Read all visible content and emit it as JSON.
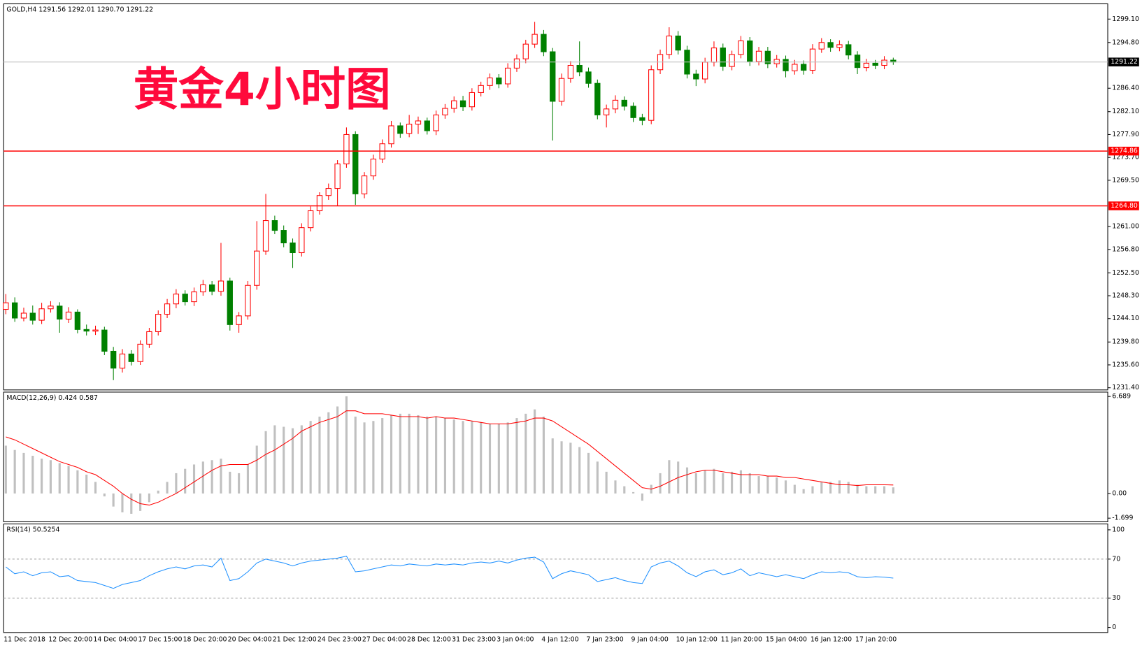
{
  "chart_data": [
    {
      "type": "candlestick",
      "title": "GOLD,H4  1291.56 1292.01 1290.70 1291.22",
      "annotation": "黄金4小时图",
      "up_color": "#ff0000",
      "down_color": "#008000",
      "categories": [
        "11 Dec 2018",
        null,
        null,
        null,
        null,
        "12 Dec 20:00",
        null,
        null,
        null,
        null,
        "14 Dec 04:00",
        null,
        null,
        null,
        null,
        "17 Dec 15:00",
        null,
        null,
        null,
        null,
        "18 Dec 20:00",
        null,
        null,
        null,
        null,
        "20 Dec 04:00",
        null,
        null,
        null,
        null,
        "21 Dec 12:00",
        null,
        null,
        null,
        null,
        "24 Dec 23:00",
        null,
        null,
        null,
        null,
        "27 Dec 04:00",
        null,
        null,
        null,
        null,
        "28 Dec 12:00",
        null,
        null,
        null,
        null,
        "31 Dec 23:00",
        null,
        null,
        null,
        null,
        "3 Jan 04:00",
        null,
        null,
        null,
        null,
        "4 Jan 12:00",
        null,
        null,
        null,
        null,
        "7 Jan 23:00",
        null,
        null,
        null,
        null,
        "9 Jan 04:00",
        null,
        null,
        null,
        null,
        "10 Jan 12:00",
        null,
        null,
        null,
        null,
        "11 Jan 20:00",
        null,
        null,
        null,
        null,
        "15 Jan 04:00",
        null,
        null,
        null,
        null,
        "16 Jan 12:00",
        null,
        null,
        null,
        null,
        "17 Jan 20:00",
        null,
        null,
        null,
        null
      ],
      "open": [
        1245.8,
        1247.0,
        1244.2,
        1245.1,
        1243.8,
        1245.9,
        1246.4,
        1244.0,
        1245.3,
        1242.1,
        1241.8,
        1242.0,
        1238.1,
        1235.0,
        1237.6,
        1236.2,
        1239.4,
        1241.7,
        1244.9,
        1246.8,
        1248.6,
        1247.2,
        1249.0,
        1250.3,
        1249.1,
        1251.0,
        1243.0,
        1244.6,
        1250.2,
        1256.5,
        1262.1,
        1260.3,
        1258.0,
        1256.2,
        1260.8,
        1263.9,
        1266.7,
        1268.0,
        1272.5,
        1277.9,
        1267.0,
        1270.3,
        1273.4,
        1276.2,
        1279.5,
        1278.1,
        1279.8,
        1280.4,
        1278.6,
        1281.5,
        1282.7,
        1284.1,
        1283.0,
        1285.6,
        1286.9,
        1288.3,
        1287.2,
        1290.1,
        1291.8,
        1294.5,
        1296.3,
        1293.1,
        1284.0,
        1288.2,
        1290.6,
        1289.4,
        1287.3,
        1281.5,
        1282.6,
        1284.2,
        1283.1,
        1281.0,
        1280.5,
        1289.8,
        1292.6,
        1296.0,
        1293.4,
        1289.0,
        1288.1,
        1291.2,
        1293.8,
        1290.4,
        1292.6,
        1295.1,
        1291.3,
        1293.2,
        1290.9,
        1291.7,
        1289.6,
        1290.8,
        1289.7,
        1293.6,
        1294.8,
        1293.9,
        1294.4,
        1292.5,
        1290.2,
        1291.0,
        1290.6,
        1291.56
      ],
      "high": [
        1248.6,
        1248.0,
        1246.1,
        1246.5,
        1247.0,
        1247.3,
        1247.1,
        1246.2,
        1245.8,
        1243.0,
        1242.8,
        1242.6,
        1238.9,
        1238.5,
        1238.3,
        1240.1,
        1242.4,
        1245.6,
        1247.7,
        1249.5,
        1249.3,
        1249.8,
        1251.2,
        1251.0,
        1258.0,
        1251.6,
        1245.3,
        1251.0,
        1262.0,
        1267.0,
        1263.0,
        1261.2,
        1258.8,
        1261.6,
        1264.7,
        1267.3,
        1268.9,
        1273.2,
        1279.2,
        1278.5,
        1271.0,
        1274.2,
        1277.0,
        1280.4,
        1280.1,
        1281.5,
        1281.2,
        1281.0,
        1282.3,
        1283.5,
        1284.9,
        1285.0,
        1286.4,
        1287.6,
        1289.1,
        1289.0,
        1291.0,
        1292.6,
        1295.3,
        1298.6,
        1297.1,
        1293.8,
        1289.1,
        1291.4,
        1295.0,
        1290.2,
        1288.0,
        1283.4,
        1285.1,
        1284.9,
        1283.8,
        1281.7,
        1290.6,
        1293.5,
        1297.6,
        1296.9,
        1294.2,
        1289.8,
        1292.0,
        1295.0,
        1294.6,
        1293.3,
        1296.0,
        1295.8,
        1294.0,
        1294.0,
        1292.5,
        1292.4,
        1291.6,
        1291.5,
        1294.5,
        1295.6,
        1295.4,
        1295.2,
        1295.1,
        1293.2,
        1291.8,
        1291.6,
        1292.3,
        1292.01
      ],
      "low": [
        1244.9,
        1243.5,
        1243.6,
        1243.0,
        1243.1,
        1245.2,
        1241.5,
        1243.3,
        1241.4,
        1241.0,
        1241.1,
        1237.4,
        1232.8,
        1234.2,
        1235.5,
        1235.6,
        1238.7,
        1241.0,
        1244.2,
        1246.0,
        1246.5,
        1246.4,
        1248.3,
        1248.4,
        1248.3,
        1241.9,
        1241.5,
        1243.9,
        1249.4,
        1255.8,
        1259.6,
        1257.2,
        1253.4,
        1255.5,
        1260.1,
        1263.2,
        1265.9,
        1264.8,
        1271.8,
        1265.0,
        1266.2,
        1269.6,
        1272.7,
        1275.5,
        1277.3,
        1277.4,
        1278.0,
        1277.9,
        1277.8,
        1280.8,
        1281.9,
        1282.2,
        1282.3,
        1284.9,
        1286.1,
        1286.4,
        1286.5,
        1289.4,
        1291.0,
        1293.8,
        1292.3,
        1276.8,
        1283.2,
        1287.4,
        1288.6,
        1286.5,
        1280.7,
        1279.2,
        1281.8,
        1282.3,
        1280.2,
        1279.6,
        1279.8,
        1289.0,
        1291.8,
        1292.6,
        1288.2,
        1286.8,
        1287.3,
        1290.4,
        1289.6,
        1289.7,
        1291.9,
        1290.5,
        1290.6,
        1290.1,
        1290.2,
        1288.4,
        1288.9,
        1288.9,
        1289.0,
        1292.9,
        1293.1,
        1293.2,
        1291.7,
        1289.0,
        1289.5,
        1289.9,
        1289.9,
        1290.7
      ],
      "close": [
        1247.0,
        1244.2,
        1245.1,
        1243.8,
        1245.9,
        1246.4,
        1244.0,
        1245.3,
        1242.1,
        1241.8,
        1242.0,
        1238.1,
        1235.0,
        1237.6,
        1236.2,
        1239.4,
        1241.7,
        1244.9,
        1246.8,
        1248.6,
        1247.2,
        1249.0,
        1250.3,
        1249.1,
        1251.0,
        1243.0,
        1244.6,
        1250.2,
        1256.5,
        1262.1,
        1260.3,
        1258.0,
        1256.2,
        1260.8,
        1263.9,
        1266.7,
        1268.0,
        1272.5,
        1277.9,
        1267.0,
        1270.3,
        1273.4,
        1276.2,
        1279.5,
        1278.1,
        1279.8,
        1280.4,
        1278.6,
        1281.5,
        1282.7,
        1284.1,
        1283.0,
        1285.6,
        1286.9,
        1288.3,
        1287.2,
        1290.1,
        1291.8,
        1294.5,
        1296.3,
        1293.1,
        1284.0,
        1288.2,
        1290.6,
        1289.4,
        1287.3,
        1281.5,
        1282.6,
        1284.2,
        1283.1,
        1281.0,
        1280.5,
        1289.8,
        1292.6,
        1296.0,
        1293.4,
        1289.0,
        1288.1,
        1291.2,
        1293.8,
        1290.4,
        1292.6,
        1295.1,
        1291.3,
        1293.2,
        1290.9,
        1291.7,
        1289.6,
        1290.8,
        1289.7,
        1293.6,
        1294.8,
        1293.9,
        1294.4,
        1292.5,
        1290.2,
        1291.0,
        1290.6,
        1291.56,
        1291.22
      ],
      "hlines": [
        {
          "value": 1291.22,
          "color": "#c0c0c0",
          "tag_color": "#000000"
        },
        {
          "value": 1274.86,
          "color": "#ff0000",
          "tag_color": "#ff0000"
        },
        {
          "value": 1264.8,
          "label": "1264.80",
          "color": "#ff0000",
          "tag_color": "#ff0000"
        }
      ],
      "ylim": [
        1231.0,
        1301.9
      ],
      "yticks": [
        {
          "value": 1299.1,
          "label": "1299.10"
        },
        {
          "value": 1294.8,
          "label": "1294.80"
        },
        {
          "value": 1286.4,
          "label": "1286.40"
        },
        {
          "value": 1282.1,
          "label": "1282.10"
        },
        {
          "value": 1277.9,
          "label": "1277.90"
        },
        {
          "value": 1273.7,
          "label": "1273.70"
        },
        {
          "value": 1269.5,
          "label": "1269.50"
        },
        {
          "value": 1261.0,
          "label": "1261.00"
        },
        {
          "value": 1256.8,
          "label": "1256.80"
        },
        {
          "value": 1252.5,
          "label": "1252.50"
        },
        {
          "value": 1248.3,
          "label": "1248.30"
        },
        {
          "value": 1244.1,
          "label": "1244.10"
        },
        {
          "value": 1239.8,
          "label": "1239.80"
        },
        {
          "value": 1235.6,
          "label": "1235.60"
        },
        {
          "value": 1231.4,
          "label": "1231.40"
        }
      ]
    },
    {
      "type": "macd",
      "title": "MACD(12,26,9) 0.424 0.587",
      "series": [
        {
          "type": "bar",
          "color": "#c0c0c0",
          "values": [
            3.3,
            3.0,
            2.8,
            2.6,
            2.4,
            2.3,
            2.1,
            1.9,
            1.6,
            1.3,
            0.8,
            -0.2,
            -0.9,
            -1.3,
            -1.4,
            -1.2,
            -0.6,
            0.2,
            0.8,
            1.4,
            1.7,
            2.0,
            2.2,
            2.3,
            2.4,
            1.5,
            1.4,
            2.0,
            3.3,
            4.3,
            4.7,
            4.6,
            4.5,
            4.7,
            5.0,
            5.3,
            5.6,
            6.0,
            6.7,
            5.3,
            4.9,
            5.0,
            5.2,
            5.4,
            5.5,
            5.5,
            5.4,
            5.3,
            5.3,
            5.2,
            5.1,
            5.0,
            5.0,
            4.9,
            4.8,
            4.8,
            4.9,
            5.2,
            5.5,
            5.8,
            5.3,
            3.8,
            3.6,
            3.5,
            3.2,
            2.8,
            2.2,
            1.5,
            0.9,
            0.5,
            0.1,
            -0.5,
            0.6,
            1.4,
            2.3,
            2.2,
            1.8,
            1.4,
            1.6,
            1.7,
            1.4,
            1.5,
            1.6,
            1.4,
            1.2,
            1.2,
            1.1,
            0.9,
            0.6,
            0.3,
            0.5,
            0.8,
            0.8,
            0.9,
            0.8,
            0.6,
            0.5,
            0.5,
            0.5,
            0.424
          ]
        },
        {
          "type": "line",
          "color": "#ff0000",
          "values": [
            3.9,
            3.7,
            3.4,
            3.1,
            2.8,
            2.5,
            2.2,
            2.0,
            1.8,
            1.5,
            1.3,
            0.9,
            0.5,
            0.0,
            -0.4,
            -0.7,
            -0.8,
            -0.6,
            -0.3,
            0.0,
            0.4,
            0.8,
            1.2,
            1.6,
            1.9,
            2.0,
            2.0,
            2.0,
            2.3,
            2.7,
            3.0,
            3.4,
            3.8,
            4.3,
            4.6,
            4.9,
            5.1,
            5.3,
            5.7,
            5.7,
            5.5,
            5.5,
            5.5,
            5.4,
            5.3,
            5.3,
            5.3,
            5.2,
            5.3,
            5.2,
            5.2,
            5.1,
            5.0,
            4.9,
            4.8,
            4.8,
            4.8,
            4.9,
            5.0,
            5.2,
            5.2,
            5.0,
            4.6,
            4.2,
            3.8,
            3.4,
            2.9,
            2.4,
            1.9,
            1.4,
            0.9,
            0.4,
            0.3,
            0.5,
            0.8,
            1.1,
            1.3,
            1.5,
            1.6,
            1.6,
            1.5,
            1.4,
            1.3,
            1.3,
            1.3,
            1.2,
            1.2,
            1.1,
            1.1,
            1.0,
            0.9,
            0.8,
            0.7,
            0.6,
            0.6,
            0.55,
            0.6,
            0.6,
            0.6,
            0.587
          ]
        }
      ],
      "ylim": [
        -1.95,
        6.99
      ],
      "yticks": [
        6.689,
        {
          "value": 0,
          "label": "0.00"
        },
        -1.699
      ]
    },
    {
      "type": "line",
      "title": "RSI(14) 50.5254",
      "color": "#1e90ff",
      "values": [
        62,
        55,
        57,
        53,
        56,
        57,
        52,
        53,
        48,
        47,
        46,
        43,
        40,
        44,
        46,
        48,
        53,
        57,
        60,
        62,
        60,
        63,
        64,
        62,
        71,
        48,
        50,
        57,
        66,
        70,
        68,
        66,
        63,
        66,
        68,
        69,
        70,
        71,
        73,
        57,
        58,
        60,
        62,
        64,
        63,
        65,
        64,
        63,
        65,
        64,
        65,
        64,
        66,
        67,
        66,
        68,
        66,
        69,
        71,
        72,
        67,
        50,
        55,
        58,
        56,
        54,
        47,
        49,
        51,
        48,
        46,
        45,
        62,
        66,
        68,
        63,
        56,
        52,
        57,
        59,
        54,
        56,
        60,
        53,
        56,
        54,
        52,
        54,
        52,
        50,
        54,
        57,
        56,
        57,
        56,
        52,
        51,
        52,
        51.5,
        50.5254
      ],
      "levels": [
        70,
        30
      ],
      "ylim": [
        -5.2,
        106
      ],
      "yticks": [
        100,
        70,
        30,
        0
      ]
    }
  ]
}
